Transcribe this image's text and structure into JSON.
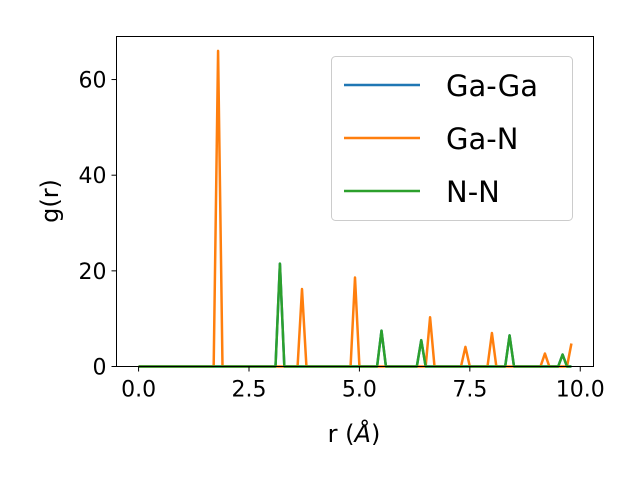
{
  "chart_data": {
    "type": "line",
    "title": "",
    "xlabel_main": "r (",
    "xlabel_unit": "Å",
    "xlabel_close": ")",
    "ylabel": "g(r)",
    "xlim": [
      -0.5,
      10.3
    ],
    "ylim": [
      0,
      69
    ],
    "xticks": [
      0.0,
      2.5,
      5.0,
      7.5,
      10.0
    ],
    "xtick_labels": [
      "0.0",
      "2.5",
      "5.0",
      "7.5",
      "10.0"
    ],
    "yticks": [
      0,
      20,
      40,
      60
    ],
    "ytick_labels": [
      "0",
      "20",
      "40",
      "60"
    ],
    "grid": false,
    "legend_position": "top-right",
    "series": [
      {
        "name": "Ga-Ga",
        "color": "#1f77b4",
        "peaks": [
          [
            3.2,
            21.5
          ],
          [
            5.5,
            7.5
          ],
          [
            6.4,
            5.5
          ],
          [
            8.4,
            6.5
          ],
          [
            9.6,
            2.5
          ]
        ]
      },
      {
        "name": "Ga-N",
        "color": "#ff7f0e",
        "peaks": [
          [
            1.8,
            66.0
          ],
          [
            3.7,
            16.2
          ],
          [
            4.9,
            18.6
          ],
          [
            6.6,
            10.3
          ],
          [
            7.4,
            4.1
          ],
          [
            8.0,
            7.0
          ],
          [
            9.2,
            2.7
          ],
          [
            9.8,
            4.8
          ]
        ]
      },
      {
        "name": "N-N",
        "color": "#2ca02c",
        "peaks": [
          [
            3.2,
            21.5
          ],
          [
            5.5,
            7.5
          ],
          [
            6.4,
            5.5
          ],
          [
            8.4,
            6.5
          ],
          [
            9.6,
            2.5
          ]
        ]
      }
    ]
  }
}
